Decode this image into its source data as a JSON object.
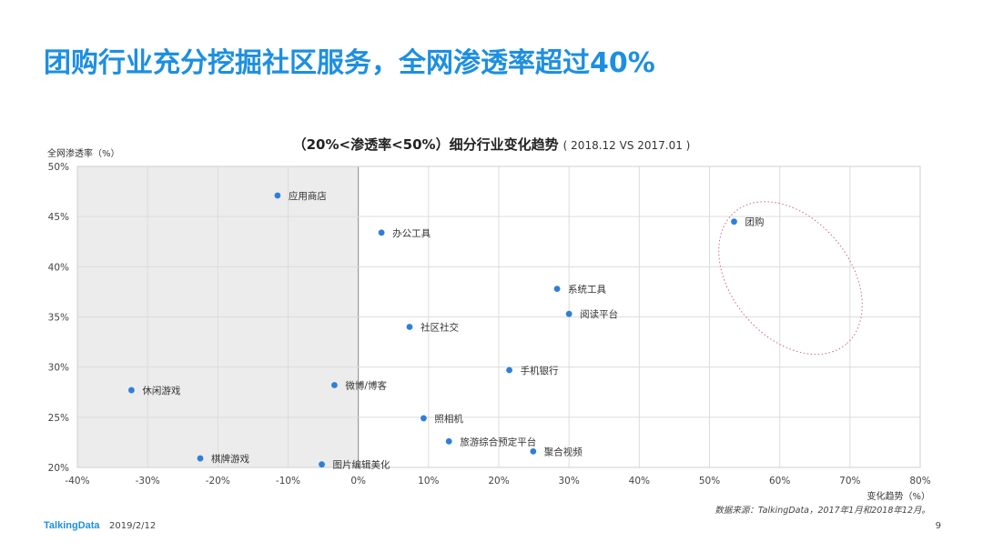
{
  "page": {
    "title": "团购行业充分挖掘社区服务，全网渗透率超过40%",
    "source": "数据来源：TalkingData，2017年1月和2018年12月。",
    "brand": "TalkingData",
    "date": "2019/2/12",
    "page_number": "9"
  },
  "chart_data": {
    "type": "scatter",
    "title": "（20%<渗透率<50%）细分行业变化趋势",
    "subtitle": "( 2018.12  VS 2017.01 )",
    "xlabel": "变化趋势（%）",
    "ylabel": "全网渗透率（%）",
    "xlim": [
      -40,
      80
    ],
    "ylim": [
      20,
      50
    ],
    "x_ticks": [
      "-40%",
      "-30%",
      "-20%",
      "-10%",
      "0%",
      "10%",
      "20%",
      "30%",
      "40%",
      "50%",
      "60%",
      "70%",
      "80%"
    ],
    "y_ticks": [
      "50%",
      "45%",
      "40%",
      "35%",
      "30%",
      "25%",
      "20%"
    ],
    "grid": true,
    "shaded_region": "x < 0",
    "highlight": "团购",
    "point_color": "#2e7fd9",
    "points": [
      {
        "label": "应用商店",
        "x": -11.5,
        "y": 47.1
      },
      {
        "label": "办公工具",
        "x": 3.3,
        "y": 43.4
      },
      {
        "label": "团购",
        "x": 53.5,
        "y": 44.5
      },
      {
        "label": "系统工具",
        "x": 28.3,
        "y": 37.8
      },
      {
        "label": "阅读平台",
        "x": 30.0,
        "y": 35.3
      },
      {
        "label": "社区社交",
        "x": 7.3,
        "y": 34.0
      },
      {
        "label": "手机银行",
        "x": 21.5,
        "y": 29.7
      },
      {
        "label": "休闲游戏",
        "x": -32.3,
        "y": 27.7
      },
      {
        "label": "微博/博客",
        "x": -3.4,
        "y": 28.2
      },
      {
        "label": "照相机",
        "x": 9.3,
        "y": 24.9
      },
      {
        "label": "旅游综合预定平台",
        "x": 12.9,
        "y": 22.6
      },
      {
        "label": "聚合视频",
        "x": 24.9,
        "y": 21.6
      },
      {
        "label": "棋牌游戏",
        "x": -22.5,
        "y": 20.9
      },
      {
        "label": "图片编辑美化",
        "x": -5.2,
        "y": 20.3
      }
    ]
  }
}
